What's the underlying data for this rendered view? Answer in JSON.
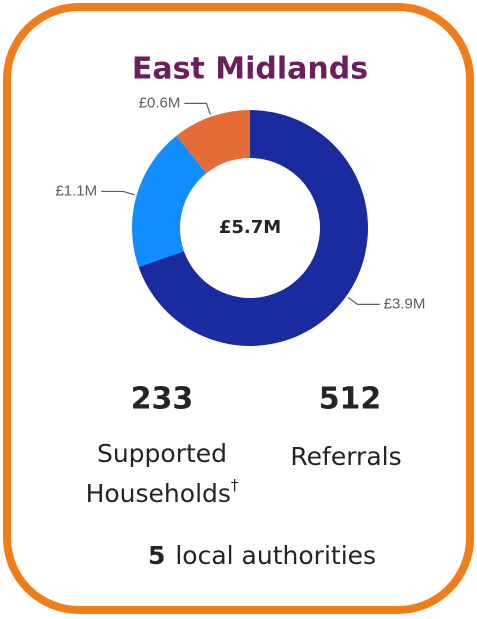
{
  "chart_data": {
    "type": "donut",
    "title": "East Midlands",
    "center_label": "£5.7M",
    "values": [
      3.9,
      1.1,
      0.6
    ],
    "value_labels": [
      "£3.9M",
      "£1.1M",
      "£0.6M"
    ],
    "colors": [
      "#1a2a9f",
      "#118dff",
      "#e66c37"
    ]
  },
  "stats": [
    {
      "value": 233,
      "label_lines": [
        "Supported",
        "Households"
      ],
      "mark": "†"
    },
    {
      "value": 512,
      "label_lines": [
        "Referrals"
      ]
    }
  ],
  "footer": {
    "value": 5,
    "label": "local authorities"
  }
}
